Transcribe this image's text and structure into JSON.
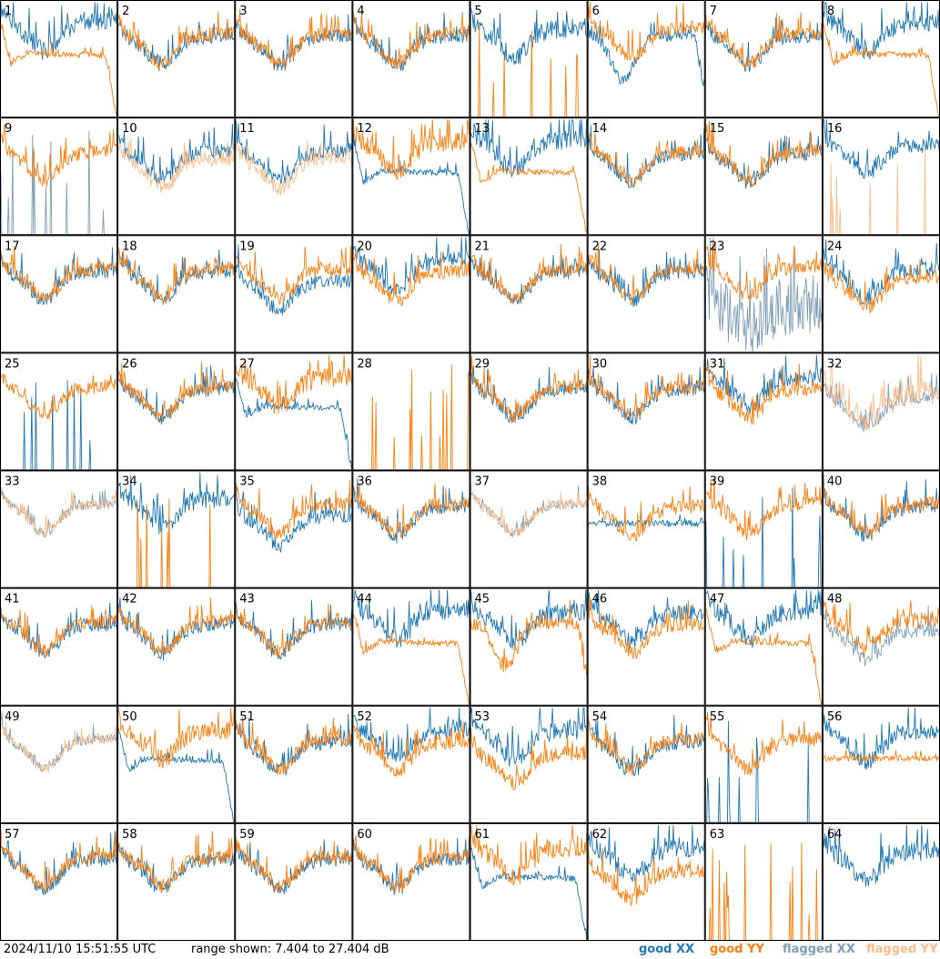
{
  "chart_data": {
    "type": "line",
    "layout": "small-multiples-8x8",
    "panels": [
      "1",
      "2",
      "3",
      "4",
      "5",
      "6",
      "7",
      "8",
      "9",
      "10",
      "11",
      "12",
      "13",
      "14",
      "15",
      "16",
      "17",
      "18",
      "19",
      "20",
      "21",
      "22",
      "23",
      "24",
      "25",
      "26",
      "27",
      "28",
      "29",
      "30",
      "31",
      "32",
      "33",
      "34",
      "35",
      "36",
      "37",
      "38",
      "39",
      "40",
      "41",
      "42",
      "43",
      "44",
      "45",
      "46",
      "47",
      "48",
      "49",
      "50",
      "51",
      "52",
      "53",
      "54",
      "55",
      "56",
      "57",
      "58",
      "59",
      "60",
      "61",
      "62",
      "63",
      "64"
    ],
    "y_range_db": [
      7.404,
      27.404
    ],
    "series_legend": [
      "good XX",
      "good YY",
      "flagged XX",
      "flagged YY"
    ],
    "colors": {
      "good_xx": "#1f77b4",
      "good_yy": "#ff7f0e",
      "flagged_xx": "#7f9fb8",
      "flagged_yy": "#ffbb88",
      "grid": "#000000"
    },
    "panel_types": {
      "1": "xx-high-yy-collapse",
      "2": "normal",
      "3": "normal",
      "4": "normal",
      "5": "xx-only-yy-spikes",
      "6": "xx-low-dip",
      "7": "normal",
      "8": "xx-high-yy-collapse",
      "9": "yy-only-xx-flag-spikes",
      "10": "flagged-yy-under",
      "11": "flagged-yy-under",
      "12": "yy-high-xx-collapse",
      "13": "xx-high-yy-collapse",
      "14": "normal",
      "15": "normal",
      "16": "xx-only-flag-yy-spikes",
      "17": "normal",
      "18": "normal",
      "19": "xx-low",
      "20": "xx-high",
      "21": "normal",
      "22": "normal",
      "23": "flag-xx-noise",
      "24": "yy-low",
      "25": "yy-only-xx-spikes",
      "26": "normal",
      "27": "yy-high-xx-collapse",
      "28": "all-yy-spikes",
      "29": "normal",
      "30": "normal",
      "31": "xx-high",
      "32": "flagged-both",
      "33": "flagged-both-smooth",
      "34": "xx-only-yy-spikes",
      "35": "xx-low",
      "36": "normal",
      "37": "flagged-both-smooth",
      "38": "xx-flat",
      "39": "yy-only-xx-spikes",
      "40": "normal",
      "41": "normal",
      "42": "normal",
      "43": "normal",
      "44": "xx-high-yy-collapse",
      "45": "xx-high-low-dip",
      "46": "xx-high",
      "47": "xx-high-yy-collapse",
      "48": "flagged-xx-lower",
      "49": "flagged-both-smooth",
      "50": "yy-high-xx-collapse",
      "51": "normal",
      "52": "xx-high",
      "53": "xx-high-yy-low",
      "54": "normal",
      "55": "yy-only-xx-spikes",
      "56": "xx-high-yy-flat",
      "57": "normal",
      "58": "normal",
      "59": "normal",
      "60": "normal",
      "61": "yy-high-xx-collapse",
      "62": "xx-high-yy-low",
      "63": "all-yy-spikes",
      "64": "xx-only"
    }
  },
  "footer": {
    "timestamp": "2024/11/10 15:51:55 UTC",
    "range": "range shown: 7.404 to 27.404 dB"
  },
  "legend": {
    "good_xx": "good XX",
    "good_yy": "good YY",
    "flagged_xx": "flagged XX",
    "flagged_yy": "flagged YY"
  }
}
